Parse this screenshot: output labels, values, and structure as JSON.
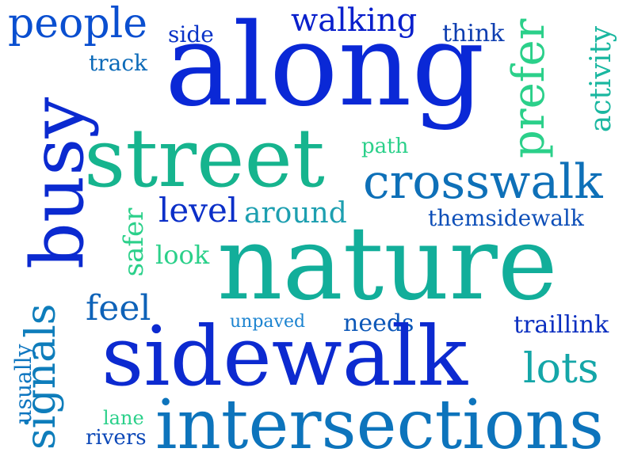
{
  "words": {
    "people": "people",
    "side": "side",
    "walking": "walking",
    "think": "think",
    "track": "track",
    "along": "along",
    "prefer": "prefer",
    "activity": "activity",
    "busy": "busy",
    "street": "street",
    "path": "path",
    "crosswalk": "crosswalk",
    "level": "level",
    "around": "around",
    "themsidewalk": "themsidewalk",
    "safer": "safer",
    "look": "look",
    "nature": "nature",
    "feel": "feel",
    "unpaved": "unpaved",
    "needs": "needs",
    "traillink": "traillink",
    "sidewalk": "sidewalk",
    "lots": "lots",
    "signals": "signals",
    "usually": "usually",
    "lane": "lane",
    "intersections": "intersections",
    "rivers": "rivers"
  },
  "colors": {
    "deep_blue": "#0a28d6",
    "mid_blue": "#0e70b8",
    "teal": "#12ae9a",
    "green": "#2bd08a",
    "background": "#ffffff"
  }
}
